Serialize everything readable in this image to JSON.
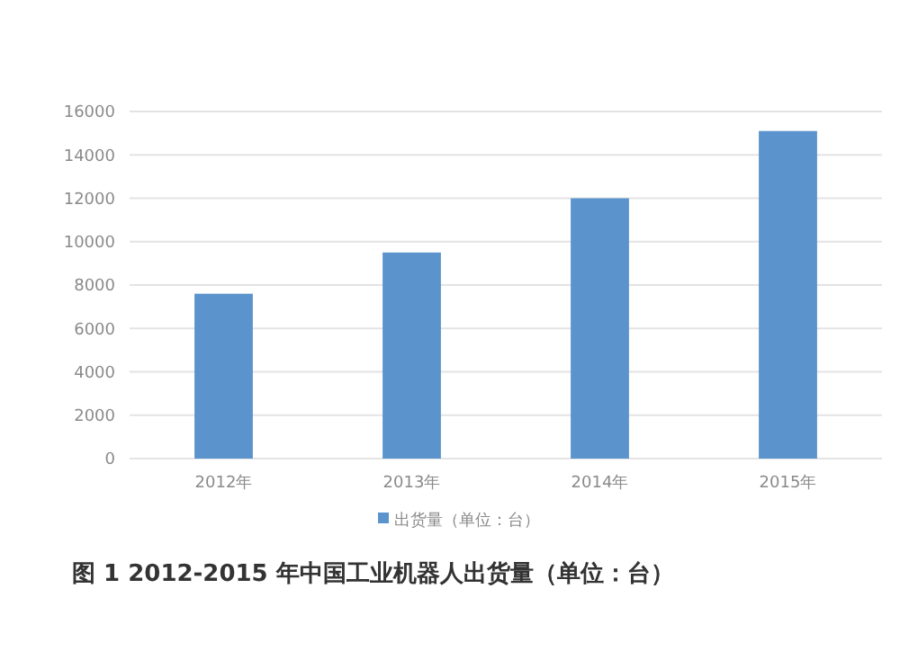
{
  "chart_data": {
    "type": "bar",
    "title": "图 1 2012-2015 年中国工业机器人出货量（单位：台）",
    "categories": [
      "2012年",
      "2013年",
      "2014年",
      "2015年"
    ],
    "series": [
      {
        "name": "出货量（单位：台）",
        "color": "#5b93cc",
        "values": [
          7600,
          9500,
          12000,
          15100
        ]
      }
    ],
    "ylim": [
      0,
      16000
    ],
    "yticks": [
      0,
      2000,
      4000,
      6000,
      8000,
      10000,
      12000,
      14000,
      16000
    ],
    "grid": "y",
    "legend": "bottom"
  }
}
